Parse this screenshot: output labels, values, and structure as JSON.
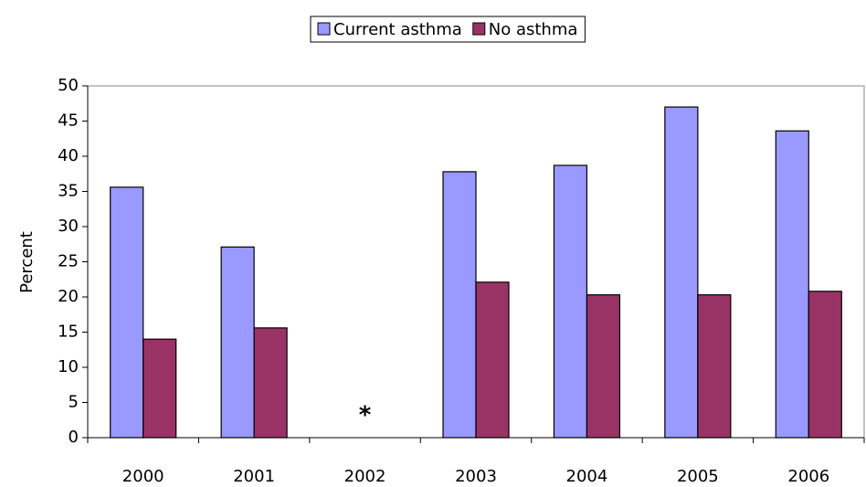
{
  "chart_data": {
    "type": "bar",
    "categories": [
      "2000",
      "2001",
      "2002",
      "2003",
      "2004",
      "2005",
      "2006"
    ],
    "series": [
      {
        "name": "Current asthma",
        "color": "#9999ff",
        "values": [
          35.6,
          27.1,
          null,
          37.8,
          38.7,
          47.0,
          43.6
        ]
      },
      {
        "name": "No asthma",
        "color": "#993366",
        "values": [
          14.0,
          15.6,
          null,
          22.1,
          20.3,
          20.3,
          20.8
        ]
      }
    ],
    "y_label": "Percent",
    "annotation": "*",
    "ylim": [
      0,
      50
    ],
    "yticks": [
      0,
      5,
      10,
      15,
      20,
      25,
      30,
      35,
      40,
      45,
      50
    ],
    "legend": "top",
    "grid": false
  }
}
